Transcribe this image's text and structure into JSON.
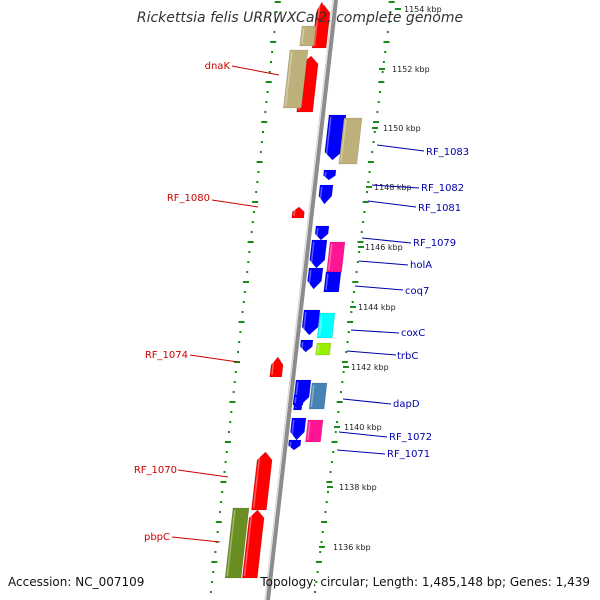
{
  "map": {
    "title": "Rickettsia felis URRWXCal2, complete genome",
    "footer": {
      "accession": "Accession: NC_007109",
      "summary": "Topology: circular; Length: 1,485,148 bp; Genes: 1,439"
    },
    "colors": {
      "backbone": "#8c8c8c",
      "tick": "#1a8a1a",
      "label_reverse": "#cc0000",
      "label_forward": "#0000aa",
      "cds_red": "#ff0000",
      "cds_blue": "#0000ff",
      "khaki": "#bdb07a",
      "pink": "#ff1493",
      "cyan": "#00ffff",
      "lime": "#99ee00",
      "steel": "#4682b4",
      "olive": "#6b8e23"
    },
    "scale_labels": [
      "1154 kbp",
      "1152 kbp",
      "1150 kbp",
      "1148 kbp",
      "1146 kbp",
      "1144 kbp",
      "1142 kbp",
      "1140 kbp",
      "1138 kbp",
      "1136 kbp"
    ],
    "gene_labels_reverse": [
      "dnaK",
      "RF_1080",
      "RF_1074",
      "RF_1070",
      "pbpC"
    ],
    "gene_labels_forward": [
      "RF_1083",
      "RF_1082",
      "RF_1081",
      "RF_1079",
      "holA",
      "coq7",
      "coxC",
      "trbC",
      "dapD",
      "RF_1072",
      "RF_1071"
    ],
    "features": [
      {
        "track": "inner-reverse",
        "color": "cds_red"
      },
      {
        "track": "inner-reverse",
        "color": "cds_red"
      },
      {
        "track": "inner-reverse",
        "color": "cds_red"
      },
      {
        "track": "inner-reverse",
        "color": "cds_red"
      },
      {
        "track": "inner-reverse",
        "color": "cds_red"
      },
      {
        "track": "inner-reverse",
        "color": "cds_red"
      },
      {
        "track": "inner-reverse",
        "color": "cds_red"
      },
      {
        "track": "outer-reverse",
        "color": "khaki"
      },
      {
        "track": "outer-reverse",
        "color": "khaki"
      },
      {
        "track": "outer-reverse",
        "color": "olive"
      },
      {
        "track": "inner-forward",
        "color": "cds_blue"
      },
      {
        "track": "inner-forward",
        "color": "cds_blue"
      },
      {
        "track": "inner-forward",
        "color": "cds_blue"
      },
      {
        "track": "inner-forward",
        "color": "cds_blue"
      },
      {
        "track": "inner-forward",
        "color": "cds_blue"
      },
      {
        "track": "inner-forward",
        "color": "cds_blue"
      },
      {
        "track": "inner-forward",
        "color": "cds_blue"
      },
      {
        "track": "inner-forward",
        "color": "cds_blue"
      },
      {
        "track": "inner-forward",
        "color": "cds_blue"
      },
      {
        "track": "inner-forward",
        "color": "cds_blue"
      },
      {
        "track": "inner-forward",
        "color": "cds_blue"
      },
      {
        "track": "inner-forward",
        "color": "cds_blue"
      },
      {
        "track": "inner-forward",
        "color": "cds_blue"
      },
      {
        "track": "outer-forward",
        "color": "khaki"
      },
      {
        "track": "outer-forward",
        "color": "pink"
      },
      {
        "track": "outer-forward",
        "color": "cds_blue"
      },
      {
        "track": "outer-forward",
        "color": "cyan"
      },
      {
        "track": "outer-forward",
        "color": "lime"
      },
      {
        "track": "outer-forward",
        "color": "steel"
      },
      {
        "track": "outer-forward",
        "color": "pink"
      }
    ]
  }
}
